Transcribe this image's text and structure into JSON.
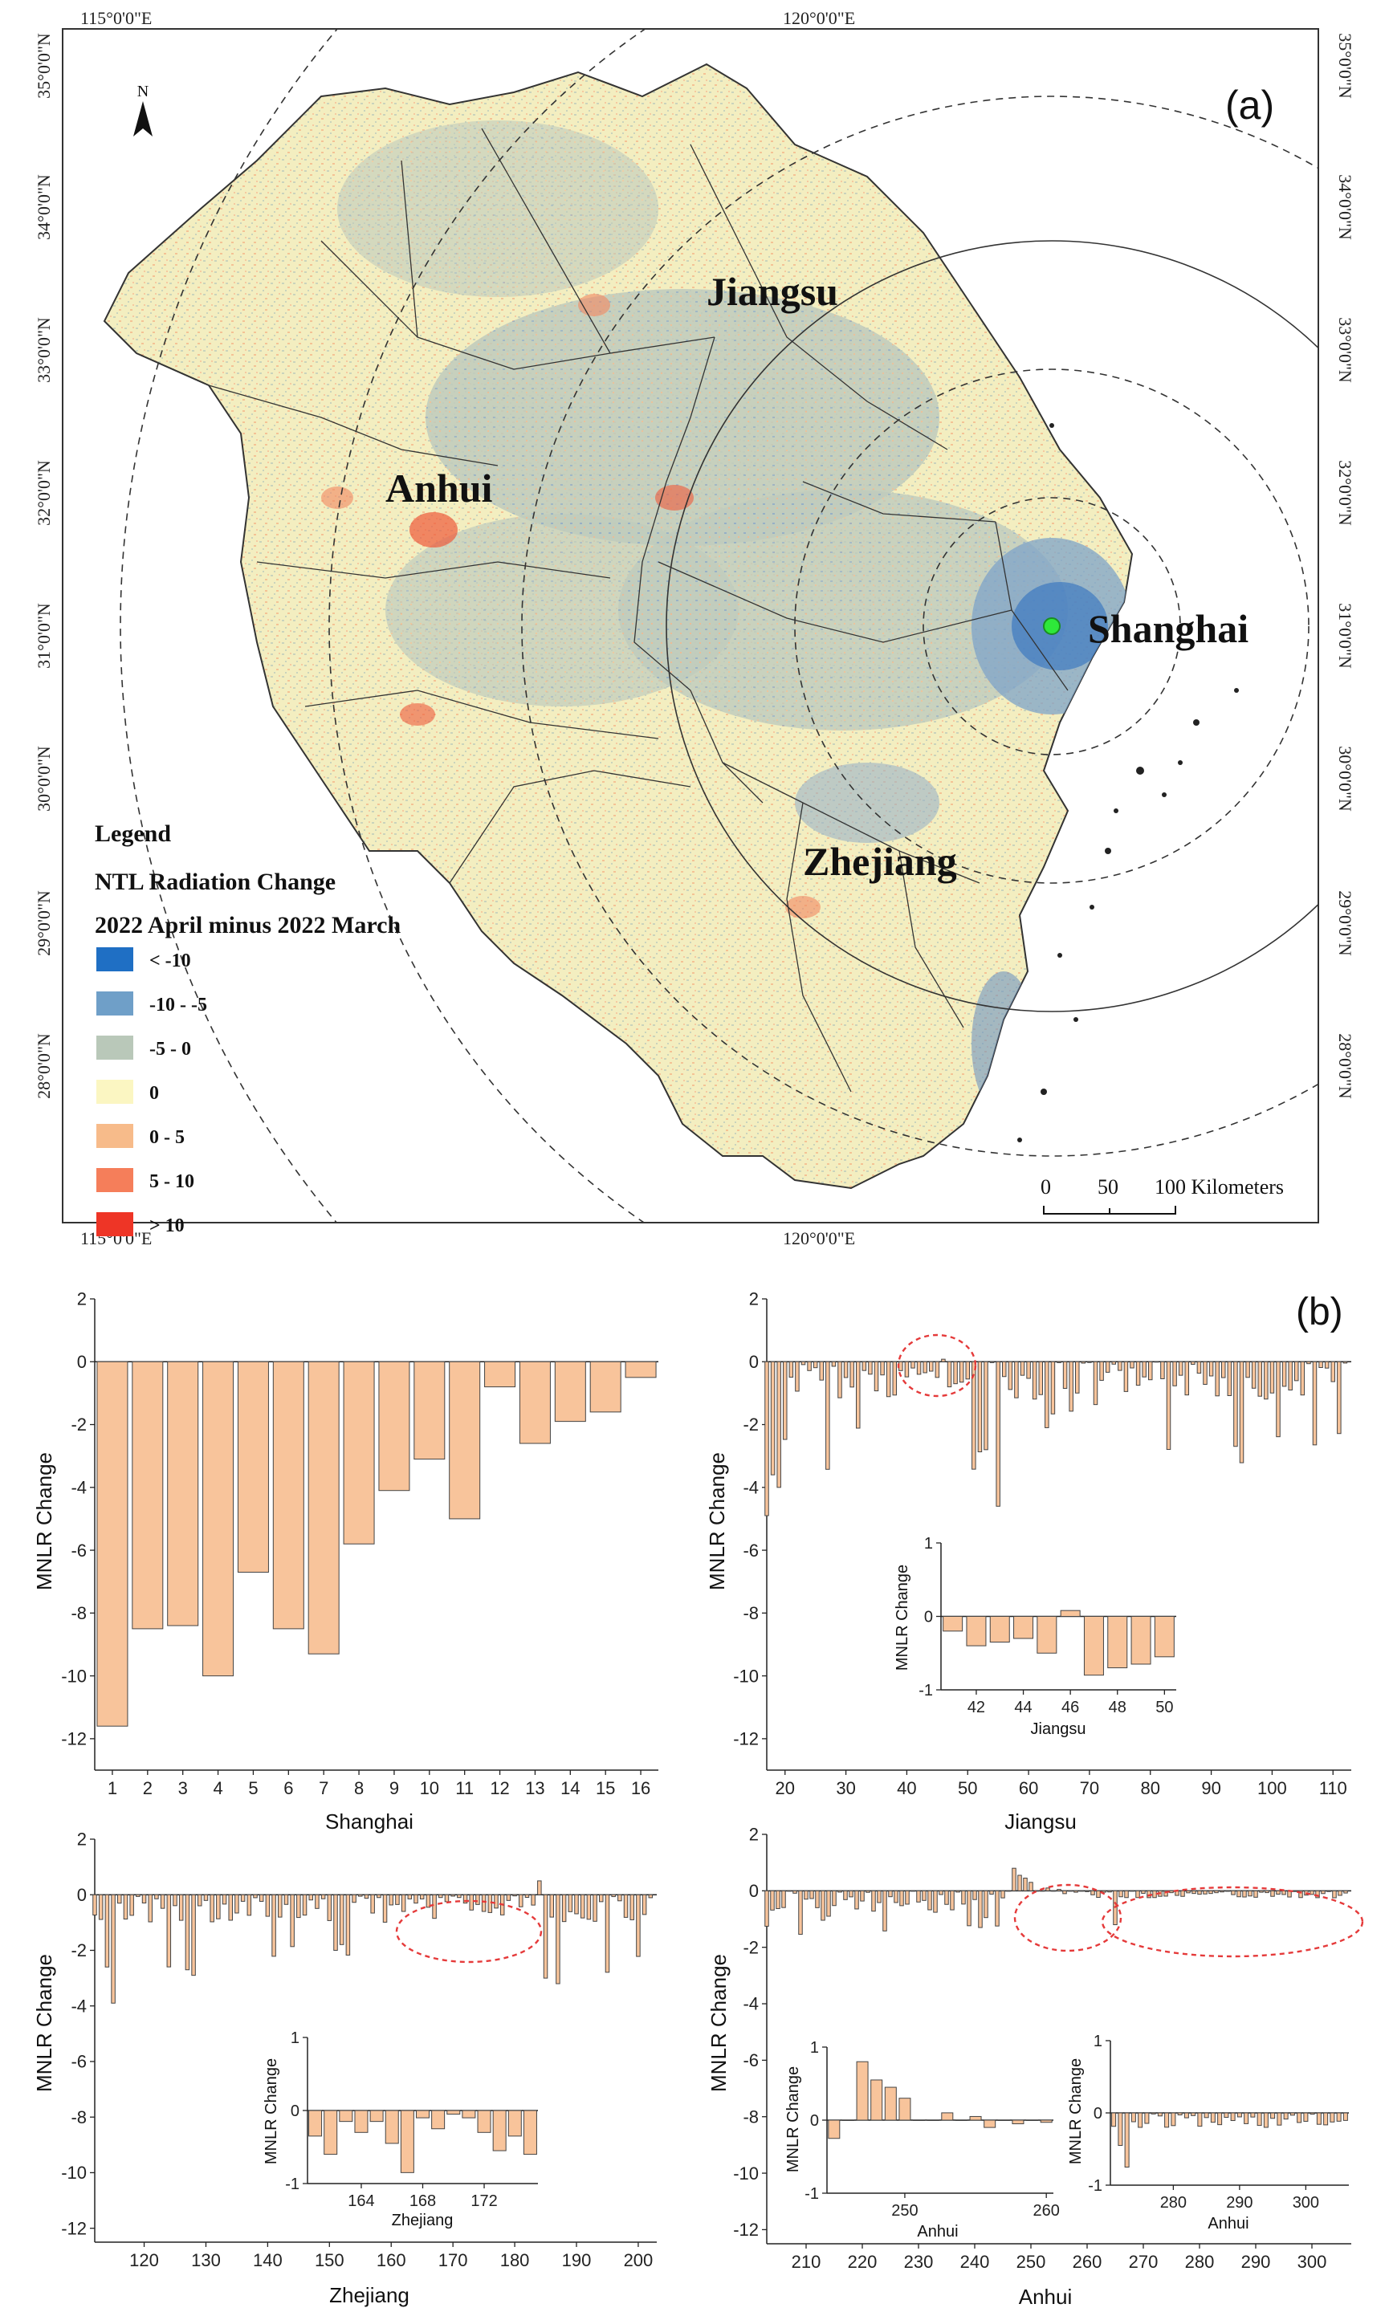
{
  "map": {
    "panel_label": "(a)",
    "north_symbol": "N",
    "lon_labels": [
      "115°0'0\"E",
      "120°0'0\"E"
    ],
    "lat_labels": [
      "35°0'0\"N",
      "34°0'0\"N",
      "33°0'0\"N",
      "32°0'0\"N",
      "31°0'0\"N",
      "30°0'0\"N",
      "29°0'0\"N",
      "28°0'0\"N"
    ],
    "provinces": [
      "Jiangsu",
      "Anhui",
      "Shanghai",
      "Zhejiang"
    ],
    "legend": {
      "title": "Legend",
      "subtitle1": "NTL Radiation Change",
      "subtitle2": "2022 April minus 2022 March",
      "classes": [
        {
          "label": "< -10",
          "color": "#1f6fc4"
        },
        {
          "label": "-10 - -5",
          "color": "#6f9fc8"
        },
        {
          "label": "-5 - 0",
          "color": "#b9c8b9"
        },
        {
          "label": "0",
          "color": "#fbf6c2"
        },
        {
          "label": "0 - 5",
          "color": "#f7bb8a"
        },
        {
          "label": "5 - 10",
          "color": "#f57e5a"
        },
        {
          "label": "> 10",
          "color": "#ee3526"
        }
      ]
    },
    "scale_bar": {
      "ticks": [
        "0",
        "50",
        "100 Kilometers"
      ]
    },
    "center_color": "#2ee83a"
  },
  "charts": {
    "panel_label": "(b)",
    "y_label": "MNLR Change",
    "bar_color": "#f8c49b",
    "shanghai": {
      "xlabel": "Shanghai",
      "x": [
        1,
        2,
        3,
        4,
        5,
        6,
        7,
        8,
        9,
        10,
        11,
        12,
        13,
        14,
        15,
        16
      ],
      "values": [
        -11.6,
        -8.5,
        -8.4,
        -10.0,
        -6.7,
        -8.5,
        -9.3,
        -5.8,
        -4.1,
        -3.1,
        -5.0,
        -0.8,
        -2.6,
        -1.9,
        -1.6,
        -0.5
      ],
      "yticks": [
        "2",
        "0",
        "-2",
        "-4",
        "-6",
        "-8",
        "-10",
        "-12"
      ],
      "xticks": [
        "1",
        "2",
        "3",
        "4",
        "5",
        "6",
        "7",
        "8",
        "9",
        "10",
        "11",
        "12",
        "13",
        "14",
        "15",
        "16"
      ]
    },
    "jiangsu": {
      "xlabel": "Jiangsu",
      "yticks": [
        "2",
        "0",
        "-2",
        "-4",
        "-6",
        "-8",
        "-10",
        "-12"
      ],
      "xticks": [
        "20",
        "30",
        "40",
        "50",
        "60",
        "70",
        "80",
        "90",
        "100",
        "110"
      ],
      "inset": {
        "xlabel": "Jiangsu",
        "yticks": [
          "1",
          "0",
          "-1"
        ],
        "xticks": [
          "42",
          "44",
          "46",
          "48",
          "50"
        ],
        "x": [
          41,
          42,
          43,
          44,
          45,
          46,
          47,
          48,
          49,
          50
        ],
        "values": [
          -0.2,
          -0.4,
          -0.35,
          -0.3,
          -0.5,
          0.08,
          -0.8,
          -0.7,
          -0.65,
          -0.55
        ]
      }
    },
    "zhejiang": {
      "xlabel": "Zhejiang",
      "yticks": [
        "2",
        "0",
        "-2",
        "-4",
        "-6",
        "-8",
        "-10",
        "-12"
      ],
      "xticks": [
        "120",
        "130",
        "140",
        "150",
        "160",
        "170",
        "180",
        "190",
        "200"
      ],
      "inset": {
        "xlabel": "Zhejiang",
        "yticks": [
          "1",
          "0",
          "-1"
        ],
        "xticks": [
          "164",
          "168",
          "172"
        ],
        "x": [
          161,
          162,
          163,
          164,
          165,
          166,
          167,
          168,
          169,
          170,
          171,
          172,
          173,
          174,
          175
        ],
        "values": [
          -0.35,
          -0.6,
          -0.15,
          -0.3,
          -0.15,
          -0.45,
          -0.85,
          -0.1,
          -0.25,
          -0.05,
          -0.1,
          -0.3,
          -0.55,
          -0.35,
          -0.6
        ]
      }
    },
    "anhui": {
      "xlabel": "Anhui",
      "yticks": [
        "2",
        "0",
        "-2",
        "-4",
        "-6",
        "-8",
        "-10",
        "-12"
      ],
      "xticks": [
        "210",
        "220",
        "230",
        "240",
        "250",
        "260",
        "270",
        "280",
        "290",
        "300"
      ],
      "inset1": {
        "xlabel": "Anhui",
        "yticks": [
          "1",
          "0",
          "-1"
        ],
        "xticks": [
          "250",
          "260"
        ],
        "x": [
          245,
          246,
          247,
          248,
          249,
          250,
          251,
          252,
          253,
          254,
          255,
          256,
          257,
          258,
          259,
          260
        ],
        "values": [
          -0.25,
          0.0,
          0.8,
          0.55,
          0.45,
          0.3,
          0.0,
          0.0,
          0.1,
          0.0,
          0.05,
          -0.1,
          0.0,
          -0.05,
          0.0,
          -0.03
        ]
      },
      "inset2": {
        "xlabel": "Anhui",
        "yticks": [
          "1",
          "0",
          "-1"
        ],
        "xticks": [
          "280",
          "290",
          "300"
        ]
      }
    }
  }
}
